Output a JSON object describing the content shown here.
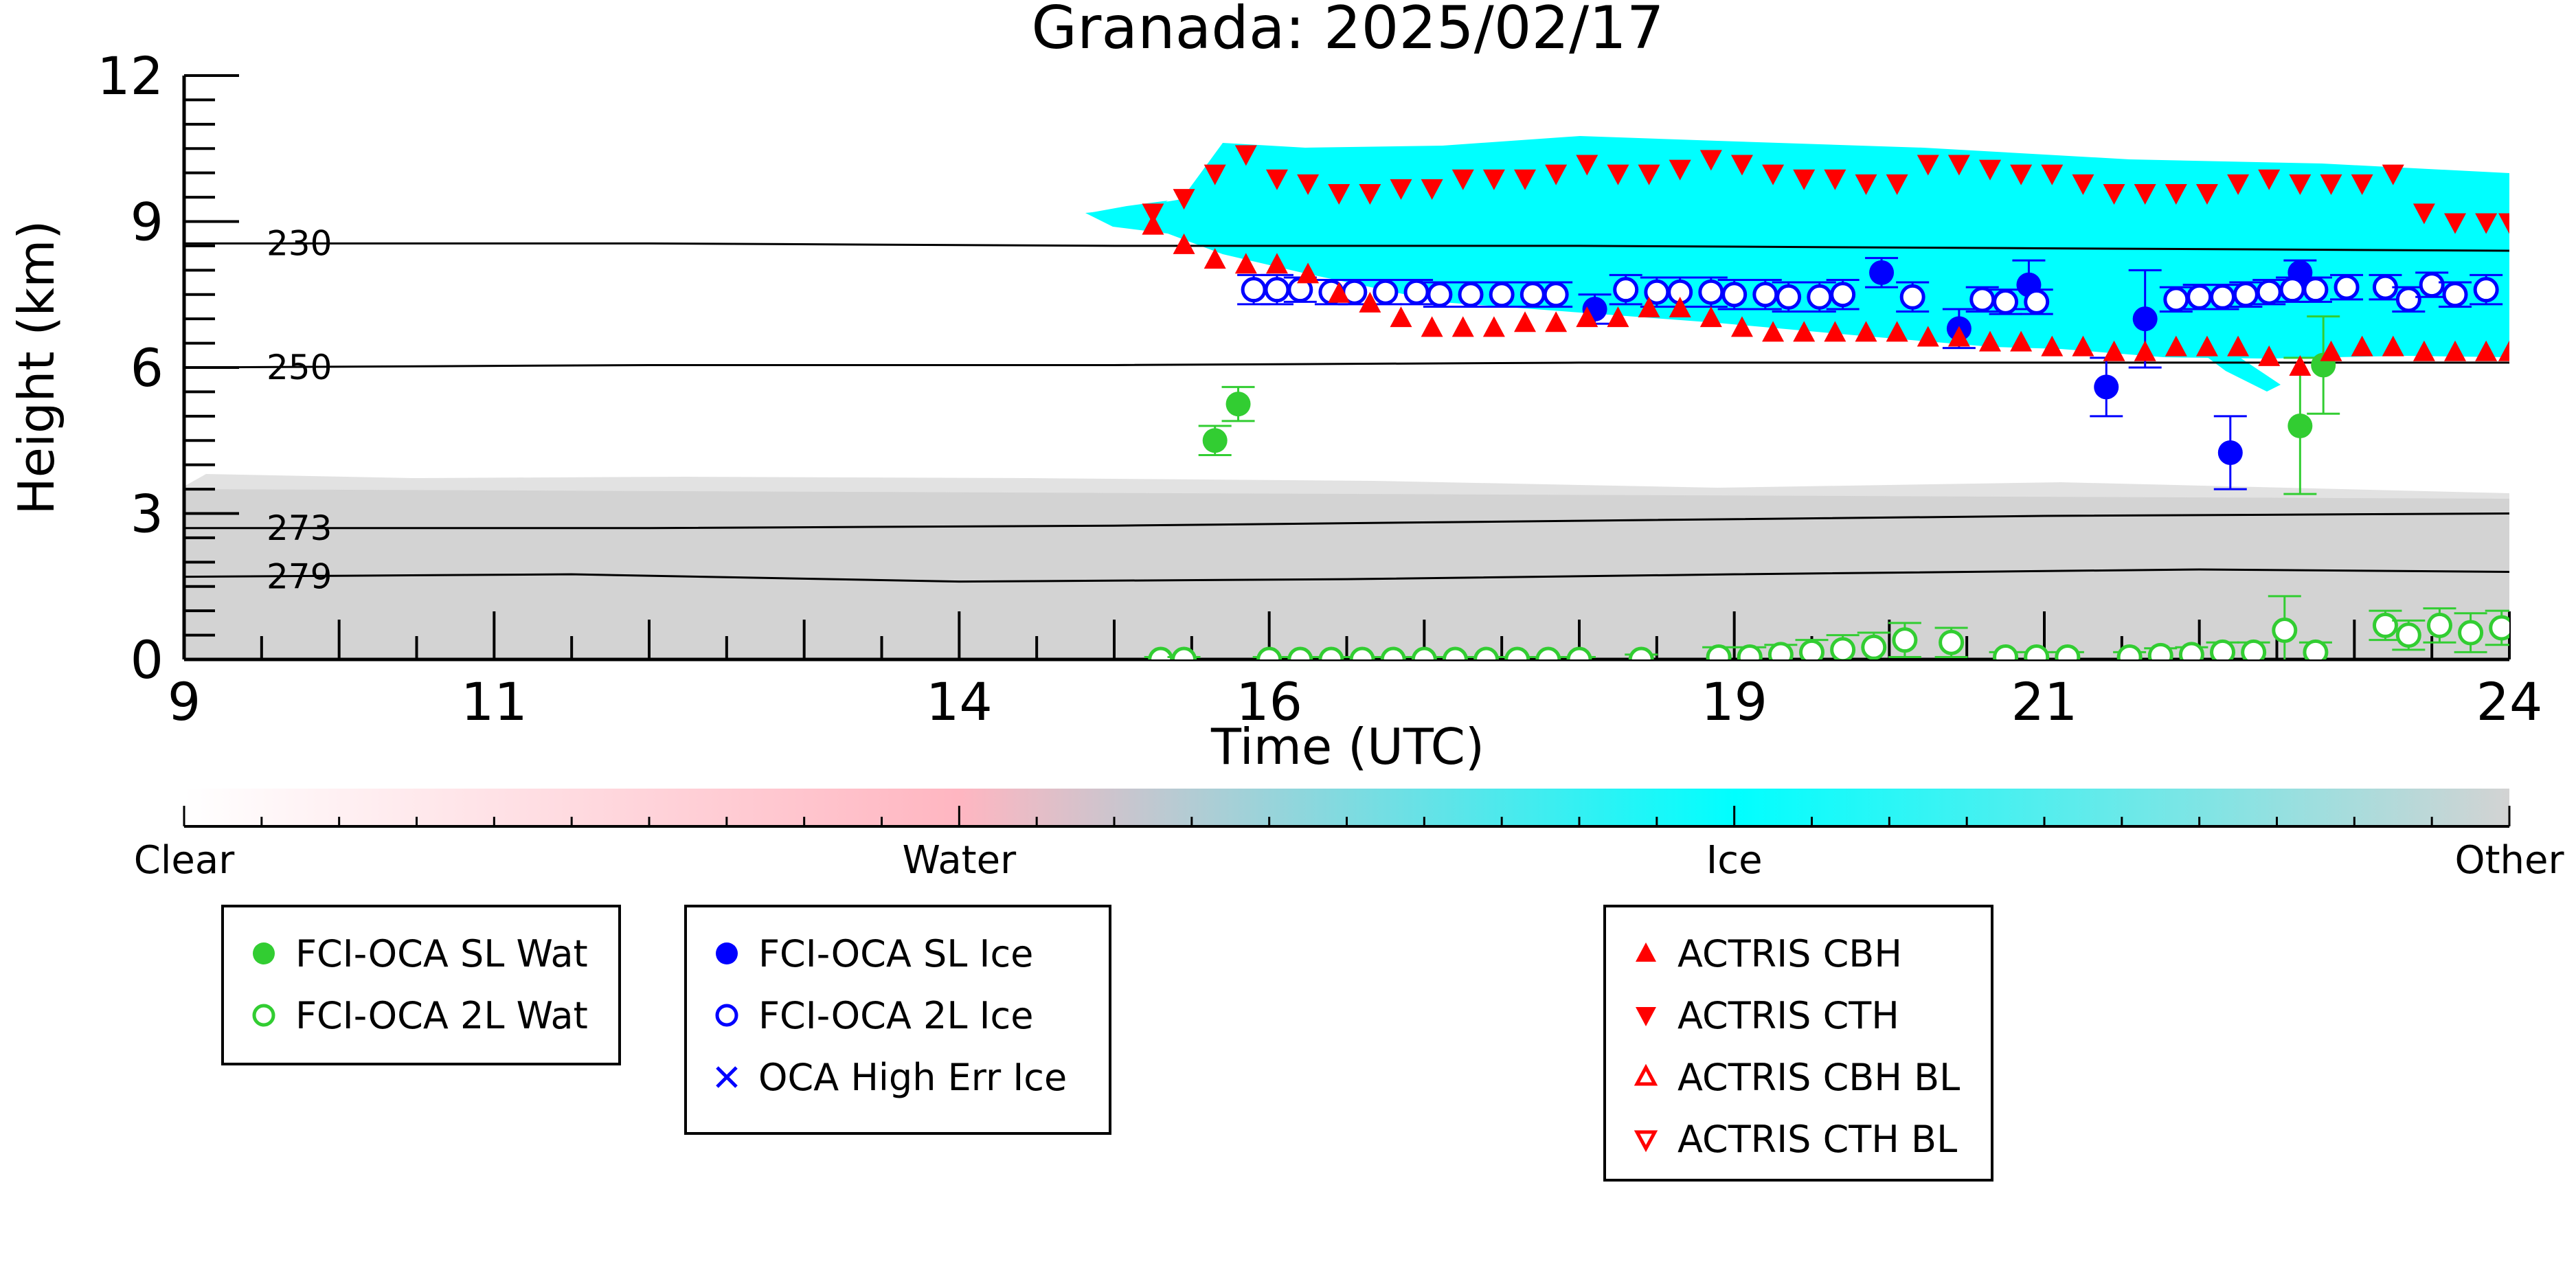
{
  "chart_data": {
    "type": "scatter",
    "title": "Granada: 2025/02/17",
    "xlabel": "Time (UTC)",
    "ylabel": "Height (km)",
    "xlim": [
      9,
      24
    ],
    "ylim": [
      0,
      12
    ],
    "x_ticks": [
      "9",
      "11",
      "14",
      "16",
      "19",
      "21",
      "24"
    ],
    "y_ticks": [
      "0",
      "3",
      "6",
      "9",
      "12"
    ],
    "colorbar": {
      "labels": [
        "Clear",
        "Water",
        "Ice",
        "Other"
      ],
      "colors": [
        "#ffffff",
        "#ffb6c1",
        "#00ffff",
        "#d3d3d3"
      ]
    },
    "isotherms": [
      {
        "label": "230",
        "x": [
          9,
          12,
          15,
          18,
          21,
          24
        ],
        "y": [
          8.55,
          8.55,
          8.5,
          8.5,
          8.45,
          8.4
        ]
      },
      {
        "label": "250",
        "x": [
          9,
          12,
          15,
          18,
          21,
          24
        ],
        "y": [
          6.0,
          6.05,
          6.05,
          6.1,
          6.1,
          6.1
        ]
      },
      {
        "label": "273",
        "x": [
          9,
          12,
          15,
          18,
          21,
          24
        ],
        "y": [
          2.7,
          2.7,
          2.75,
          2.85,
          2.95,
          3.0
        ]
      },
      {
        "label": "279",
        "x": [
          9,
          11.5,
          14,
          16.5,
          19,
          22,
          24
        ],
        "y": [
          1.7,
          1.75,
          1.6,
          1.65,
          1.75,
          1.85,
          1.8
        ]
      }
    ],
    "series": [
      {
        "name": "FCI-OCA SL Wat",
        "color": "#32cd32",
        "marker": "circle-filled",
        "points": [
          [
            15.65,
            4.5,
            0.3
          ],
          [
            15.8,
            5.25,
            0.35
          ],
          [
            22.65,
            4.8,
            1.4
          ],
          [
            22.8,
            6.05,
            1.0
          ]
        ]
      },
      {
        "name": "FCI-OCA 2L Wat",
        "color": "#32cd32",
        "marker": "circle-open",
        "points": [
          [
            15.3,
            0.0,
            0.05
          ],
          [
            15.45,
            0.0,
            0.05
          ],
          [
            16.0,
            0.0,
            0.05
          ],
          [
            16.2,
            0.0,
            0.05
          ],
          [
            16.4,
            0.0,
            0.05
          ],
          [
            16.6,
            0.0,
            0.05
          ],
          [
            16.8,
            0.0,
            0.05
          ],
          [
            17.0,
            0.0,
            0.05
          ],
          [
            17.2,
            0.0,
            0.05
          ],
          [
            17.4,
            0.0,
            0.05
          ],
          [
            17.6,
            0.0,
            0.05
          ],
          [
            17.8,
            0.0,
            0.05
          ],
          [
            18.0,
            0.0,
            0.05
          ],
          [
            18.4,
            0.0,
            0.1
          ],
          [
            18.9,
            0.05,
            0.2
          ],
          [
            19.1,
            0.05,
            0.2
          ],
          [
            19.3,
            0.1,
            0.2
          ],
          [
            19.5,
            0.15,
            0.25
          ],
          [
            19.7,
            0.2,
            0.3
          ],
          [
            19.9,
            0.25,
            0.3
          ],
          [
            20.1,
            0.4,
            0.35
          ],
          [
            20.4,
            0.35,
            0.3
          ],
          [
            20.75,
            0.05,
            0.1
          ],
          [
            20.95,
            0.05,
            0.1
          ],
          [
            21.15,
            0.05,
            0.1
          ],
          [
            21.55,
            0.05,
            0.1
          ],
          [
            21.75,
            0.08,
            0.15
          ],
          [
            21.95,
            0.1,
            0.15
          ],
          [
            22.15,
            0.15,
            0.2
          ],
          [
            22.35,
            0.15,
            0.2
          ],
          [
            22.55,
            0.6,
            0.7
          ],
          [
            22.75,
            0.15,
            0.2
          ],
          [
            23.2,
            0.7,
            0.3
          ],
          [
            23.35,
            0.5,
            0.3
          ],
          [
            23.55,
            0.7,
            0.35
          ],
          [
            23.75,
            0.55,
            0.4
          ],
          [
            23.95,
            0.65,
            0.35
          ]
        ]
      },
      {
        "name": "FCI-OCA SL Ice",
        "color": "#0000ff",
        "marker": "circle-filled",
        "points": [
          [
            18.1,
            7.2,
            0.3
          ],
          [
            19.95,
            7.95,
            0.3
          ],
          [
            20.45,
            6.8,
            0.4
          ],
          [
            20.9,
            7.7,
            0.5
          ],
          [
            21.4,
            5.6,
            0.6
          ],
          [
            21.65,
            7.0,
            1.0
          ],
          [
            22.2,
            4.25,
            0.75
          ],
          [
            22.65,
            7.95,
            0.25
          ]
        ]
      },
      {
        "name": "FCI-OCA 2L Ice",
        "color": "#0000ff",
        "marker": "circle-open",
        "points": [
          [
            15.9,
            7.6,
            0.3
          ],
          [
            16.05,
            7.6,
            0.3
          ],
          [
            16.2,
            7.6,
            0.25
          ],
          [
            16.4,
            7.55,
            0.25
          ],
          [
            16.55,
            7.55,
            0.25
          ],
          [
            16.75,
            7.55,
            0.25
          ],
          [
            16.95,
            7.55,
            0.25
          ],
          [
            17.1,
            7.5,
            0.25
          ],
          [
            17.3,
            7.5,
            0.25
          ],
          [
            17.5,
            7.5,
            0.25
          ],
          [
            17.7,
            7.5,
            0.25
          ],
          [
            17.85,
            7.5,
            0.25
          ],
          [
            18.3,
            7.6,
            0.3
          ],
          [
            18.5,
            7.55,
            0.3
          ],
          [
            18.65,
            7.55,
            0.3
          ],
          [
            18.85,
            7.55,
            0.3
          ],
          [
            19.0,
            7.5,
            0.3
          ],
          [
            19.2,
            7.5,
            0.3
          ],
          [
            19.35,
            7.45,
            0.3
          ],
          [
            19.55,
            7.45,
            0.3
          ],
          [
            19.7,
            7.5,
            0.3
          ],
          [
            20.15,
            7.45,
            0.3
          ],
          [
            20.6,
            7.4,
            0.25
          ],
          [
            20.75,
            7.35,
            0.25
          ],
          [
            20.95,
            7.35,
            0.25
          ],
          [
            21.85,
            7.4,
            0.25
          ],
          [
            22.0,
            7.45,
            0.25
          ],
          [
            22.15,
            7.45,
            0.25
          ],
          [
            22.3,
            7.5,
            0.25
          ],
          [
            22.45,
            7.55,
            0.25
          ],
          [
            22.6,
            7.6,
            0.25
          ],
          [
            22.75,
            7.6,
            0.25
          ],
          [
            22.95,
            7.65,
            0.25
          ],
          [
            23.2,
            7.65,
            0.25
          ],
          [
            23.35,
            7.4,
            0.25
          ],
          [
            23.5,
            7.7,
            0.25
          ],
          [
            23.65,
            7.5,
            0.25
          ],
          [
            23.85,
            7.6,
            0.3
          ]
        ]
      },
      {
        "name": "OCA High Err Ice",
        "color": "#0000ff",
        "marker": "cross",
        "points": []
      },
      {
        "name": "ACTRIS CBH",
        "color": "#ff0000",
        "marker": "triangle-up-filled",
        "points": [
          [
            15.25,
            8.9
          ],
          [
            15.45,
            8.5
          ],
          [
            15.65,
            8.2
          ],
          [
            15.85,
            8.1
          ],
          [
            16.05,
            8.1
          ],
          [
            16.25,
            7.9
          ],
          [
            16.45,
            7.5
          ],
          [
            16.65,
            7.3
          ],
          [
            16.85,
            7.0
          ],
          [
            17.05,
            6.8
          ],
          [
            17.25,
            6.8
          ],
          [
            17.45,
            6.8
          ],
          [
            17.65,
            6.9
          ],
          [
            17.85,
            6.9
          ],
          [
            18.05,
            7.0
          ],
          [
            18.25,
            7.0
          ],
          [
            18.45,
            7.2
          ],
          [
            18.65,
            7.2
          ],
          [
            18.85,
            7.0
          ],
          [
            19.05,
            6.8
          ],
          [
            19.25,
            6.7
          ],
          [
            19.45,
            6.7
          ],
          [
            19.65,
            6.7
          ],
          [
            19.85,
            6.7
          ],
          [
            20.05,
            6.7
          ],
          [
            20.25,
            6.6
          ],
          [
            20.45,
            6.6
          ],
          [
            20.65,
            6.5
          ],
          [
            20.85,
            6.5
          ],
          [
            21.05,
            6.4
          ],
          [
            21.25,
            6.4
          ],
          [
            21.45,
            6.3
          ],
          [
            21.65,
            6.3
          ],
          [
            21.85,
            6.4
          ],
          [
            22.05,
            6.4
          ],
          [
            22.25,
            6.4
          ],
          [
            22.45,
            6.2
          ],
          [
            22.65,
            6.0
          ],
          [
            22.85,
            6.3
          ],
          [
            23.05,
            6.4
          ],
          [
            23.25,
            6.4
          ],
          [
            23.45,
            6.3
          ],
          [
            23.65,
            6.3
          ],
          [
            23.85,
            6.3
          ],
          [
            24.0,
            6.3
          ]
        ]
      },
      {
        "name": "ACTRIS CTH",
        "color": "#ff0000",
        "marker": "triangle-down-filled",
        "points": [
          [
            15.25,
            9.2
          ],
          [
            15.45,
            9.5
          ],
          [
            15.65,
            10.0
          ],
          [
            15.85,
            10.4
          ],
          [
            16.05,
            9.9
          ],
          [
            16.25,
            9.8
          ],
          [
            16.45,
            9.6
          ],
          [
            16.65,
            9.6
          ],
          [
            16.85,
            9.7
          ],
          [
            17.05,
            9.7
          ],
          [
            17.25,
            9.9
          ],
          [
            17.45,
            9.9
          ],
          [
            17.65,
            9.9
          ],
          [
            17.85,
            10.0
          ],
          [
            18.05,
            10.2
          ],
          [
            18.25,
            10.0
          ],
          [
            18.45,
            10.0
          ],
          [
            18.65,
            10.1
          ],
          [
            18.85,
            10.3
          ],
          [
            19.05,
            10.2
          ],
          [
            19.25,
            10.0
          ],
          [
            19.45,
            9.9
          ],
          [
            19.65,
            9.9
          ],
          [
            19.85,
            9.8
          ],
          [
            20.05,
            9.8
          ],
          [
            20.25,
            10.2
          ],
          [
            20.45,
            10.2
          ],
          [
            20.65,
            10.1
          ],
          [
            20.85,
            10.0
          ],
          [
            21.05,
            10.0
          ],
          [
            21.25,
            9.8
          ],
          [
            21.45,
            9.6
          ],
          [
            21.65,
            9.6
          ],
          [
            21.85,
            9.6
          ],
          [
            22.05,
            9.6
          ],
          [
            22.25,
            9.8
          ],
          [
            22.45,
            9.9
          ],
          [
            22.65,
            9.8
          ],
          [
            22.85,
            9.8
          ],
          [
            23.05,
            9.8
          ],
          [
            23.25,
            10.0
          ],
          [
            23.45,
            9.2
          ],
          [
            23.65,
            9.0
          ],
          [
            23.85,
            9.0
          ],
          [
            24.0,
            9.0
          ]
        ]
      },
      {
        "name": "ACTRIS CBH BL",
        "color": "#ff0000",
        "marker": "triangle-up-open",
        "points": []
      },
      {
        "name": "ACTRIS CTH BL",
        "color": "#ff0000",
        "marker": "triangle-down-open",
        "points": []
      }
    ]
  }
}
